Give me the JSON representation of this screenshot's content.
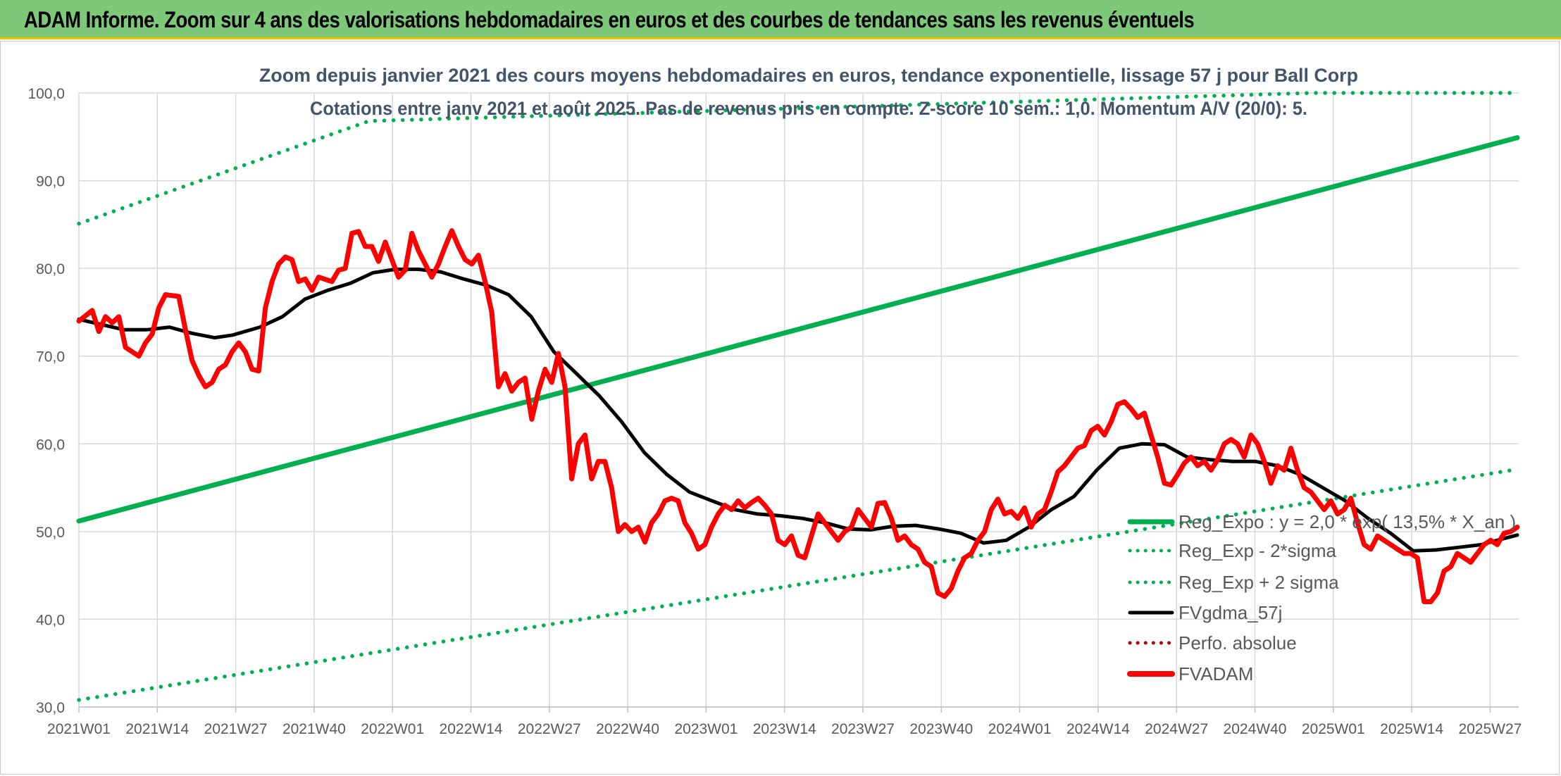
{
  "banner": {
    "title": "ADAM Informe. Zoom sur 4 ans des valorisations hebdomadaires en euros et des courbes de tendances sans les revenus éventuels"
  },
  "colors": {
    "banner": "#7ec87a",
    "banner_border": "#f2c100",
    "trend": "#00b050",
    "fvgdma": "#000000",
    "fvadam": "#ff0000",
    "perfo": "#c00000",
    "grid": "#d9d9d9",
    "title_text": "#44546a",
    "tick_text": "#595959"
  },
  "chart_data": {
    "type": "line",
    "title": "Zoom depuis janvier 2021 des cours moyens hebdomadaires en euros, tendance exponentielle, lissage 57 j pour Ball Corp",
    "subtitle": "Cotations entre janv 2021 et août 2025. Pas de revenus pris en compte. Z-score 10 sem.: 1,0. Momentum A/V (20/0): 5.",
    "ylim": [
      30,
      100
    ],
    "yticks": [
      30,
      40,
      50,
      60,
      70,
      80,
      90,
      100
    ],
    "ytick_labels": [
      "30,0",
      "40,0",
      "50,0",
      "60,0",
      "70,0",
      "80,0",
      "90,0",
      "100,0"
    ],
    "week_count": 239,
    "xtick_labels": [
      "2021W01",
      "2021W14",
      "2021W27",
      "2021W40",
      "2022W01",
      "2022W14",
      "2022W27",
      "2022W40",
      "2023W01",
      "2023W14",
      "2023W27",
      "2023W40",
      "2024W01",
      "2024W14",
      "2024W27",
      "2024W40",
      "2025W01",
      "2025W14",
      "2025W27"
    ],
    "grid": true,
    "legend_position": "bottom-right",
    "series": [
      {
        "name": "Reg_Expo : y = 2,0 * exp( 13,5% *  X_an )",
        "style": "solid",
        "color": "#00b050",
        "points": [
          [
            0,
            51.2
          ],
          [
            238,
            94.9
          ]
        ]
      },
      {
        "name": "Reg_Exp - 2*sigma",
        "style": "dotted",
        "color": "#00b050",
        "points": [
          [
            0,
            30.8
          ],
          [
            238,
            57.1
          ]
        ]
      },
      {
        "name": "Reg_Exp + 2 sigma",
        "style": "dotted",
        "color": "#00b050",
        "points": [
          [
            0,
            85.1
          ],
          [
            48,
            96.8
          ],
          [
            204,
            100
          ],
          [
            238,
            100
          ]
        ]
      },
      {
        "name": "FVgdma_57j",
        "style": "solid",
        "color": "#000000",
        "points": [
          [
            0,
            74.2
          ],
          [
            5,
            73.6
          ],
          [
            10,
            73.0
          ],
          [
            15,
            73.0
          ],
          [
            20,
            73.3
          ],
          [
            25,
            72.6
          ],
          [
            30,
            72.1
          ],
          [
            34,
            72.4
          ],
          [
            40,
            73.3
          ],
          [
            45,
            74.5
          ],
          [
            50,
            76.5
          ],
          [
            55,
            77.5
          ],
          [
            60,
            78.3
          ],
          [
            65,
            79.5
          ],
          [
            70,
            79.9
          ],
          [
            75,
            79.9
          ],
          [
            80,
            79.6
          ],
          [
            85,
            78.8
          ],
          [
            90,
            78.1
          ],
          [
            95,
            77.0
          ],
          [
            100,
            74.5
          ],
          [
            105,
            70.5
          ],
          [
            110,
            68.0
          ],
          [
            115,
            65.5
          ],
          [
            120,
            62.5
          ],
          [
            125,
            59.0
          ],
          [
            130,
            56.5
          ],
          [
            135,
            54.5
          ],
          [
            140,
            53.5
          ],
          [
            145,
            52.5
          ],
          [
            150,
            52.0
          ],
          [
            155,
            51.8
          ],
          [
            160,
            51.5
          ],
          [
            165,
            51.0
          ],
          [
            170,
            50.3
          ],
          [
            175,
            50.2
          ],
          [
            180,
            50.6
          ],
          [
            185,
            50.7
          ],
          [
            190,
            50.3
          ],
          [
            195,
            49.8
          ],
          [
            200,
            48.7
          ],
          [
            205,
            49.0
          ],
          [
            210,
            50.5
          ],
          [
            215,
            52.5
          ],
          [
            220,
            54.0
          ],
          [
            225,
            57.0
          ],
          [
            230,
            59.5
          ],
          [
            235,
            60.0
          ],
          [
            240,
            59.9
          ],
          [
            245,
            58.5
          ],
          [
            250,
            58.2
          ],
          [
            255,
            58.0
          ],
          [
            260,
            58.0
          ],
          [
            265,
            57.5
          ],
          [
            270,
            56.5
          ],
          [
            275,
            55.0
          ],
          [
            280,
            53.5
          ],
          [
            285,
            51.5
          ],
          [
            290,
            49.8
          ],
          [
            295,
            47.8
          ],
          [
            300,
            47.9
          ],
          [
            305,
            48.2
          ],
          [
            310,
            48.5
          ],
          [
            315,
            49.2
          ],
          [
            318,
            49.6
          ]
        ]
      },
      {
        "name": "Perfo. absolue",
        "style": "dotted",
        "color": "#c00000",
        "points": []
      },
      {
        "name": "FVADAM",
        "style": "solid",
        "color": "#ff0000",
        "points": [
          [
            0,
            74.0
          ],
          [
            4,
            75.2
          ],
          [
            6,
            72.8
          ],
          [
            8,
            74.5
          ],
          [
            10,
            73.8
          ],
          [
            12,
            74.5
          ],
          [
            14,
            71.0
          ],
          [
            16,
            70.5
          ],
          [
            18,
            70.0
          ],
          [
            20,
            71.5
          ],
          [
            22,
            72.5
          ],
          [
            24,
            75.5
          ],
          [
            26,
            77.0
          ],
          [
            30,
            76.8
          ],
          [
            32,
            73.0
          ],
          [
            34,
            69.5
          ],
          [
            36,
            67.8
          ],
          [
            38,
            66.5
          ],
          [
            40,
            67.0
          ],
          [
            42,
            68.5
          ],
          [
            44,
            69.0
          ],
          [
            46,
            70.5
          ],
          [
            48,
            71.5
          ],
          [
            50,
            70.5
          ],
          [
            52,
            68.5
          ],
          [
            54,
            68.3
          ],
          [
            56,
            75.5
          ],
          [
            58,
            78.5
          ],
          [
            60,
            80.5
          ],
          [
            62,
            81.3
          ],
          [
            64,
            81.0
          ],
          [
            66,
            78.5
          ],
          [
            68,
            78.8
          ],
          [
            70,
            77.5
          ],
          [
            72,
            79.0
          ],
          [
            76,
            78.5
          ],
          [
            78,
            79.8
          ],
          [
            80,
            80.0
          ],
          [
            82,
            84.0
          ],
          [
            84,
            84.2
          ],
          [
            86,
            82.5
          ],
          [
            88,
            82.5
          ],
          [
            90,
            80.8
          ],
          [
            92,
            83.0
          ],
          [
            94,
            81.0
          ],
          [
            96,
            79.0
          ],
          [
            98,
            79.8
          ],
          [
            100,
            84.0
          ],
          [
            102,
            82.0
          ],
          [
            104,
            80.5
          ],
          [
            106,
            79.0
          ],
          [
            108,
            80.5
          ],
          [
            110,
            82.5
          ],
          [
            112,
            84.3
          ],
          [
            114,
            82.5
          ],
          [
            116,
            81.0
          ],
          [
            118,
            80.5
          ],
          [
            120,
            81.5
          ],
          [
            122,
            78.5
          ],
          [
            124,
            75.0
          ],
          [
            126,
            66.5
          ],
          [
            128,
            68.0
          ],
          [
            130,
            66.0
          ],
          [
            132,
            67.0
          ],
          [
            134,
            67.5
          ],
          [
            136,
            62.8
          ],
          [
            138,
            66.0
          ],
          [
            140,
            68.5
          ],
          [
            142,
            67.0
          ],
          [
            144,
            70.3
          ],
          [
            146,
            66.5
          ],
          [
            148,
            56.0
          ],
          [
            150,
            60.0
          ],
          [
            152,
            61.0
          ],
          [
            154,
            56.0
          ],
          [
            156,
            58.0
          ],
          [
            158,
            58.0
          ],
          [
            160,
            55.0
          ],
          [
            162,
            50.0
          ],
          [
            164,
            50.8
          ],
          [
            166,
            50.0
          ],
          [
            168,
            50.5
          ],
          [
            170,
            48.8
          ],
          [
            172,
            51.0
          ],
          [
            174,
            52.0
          ],
          [
            176,
            53.5
          ],
          [
            178,
            53.8
          ],
          [
            180,
            53.5
          ],
          [
            182,
            51.0
          ],
          [
            184,
            49.8
          ],
          [
            186,
            48.0
          ],
          [
            188,
            48.5
          ],
          [
            190,
            50.5
          ],
          [
            192,
            52.0
          ],
          [
            194,
            53.0
          ],
          [
            196,
            52.5
          ],
          [
            198,
            53.5
          ],
          [
            200,
            52.7
          ],
          [
            202,
            53.3
          ],
          [
            204,
            53.8
          ],
          [
            206,
            53.0
          ],
          [
            208,
            52.0
          ],
          [
            210,
            49.0
          ],
          [
            212,
            48.5
          ],
          [
            214,
            49.5
          ],
          [
            216,
            47.3
          ],
          [
            218,
            47.0
          ],
          [
            220,
            49.5
          ],
          [
            222,
            52.0
          ],
          [
            224,
            51.0
          ],
          [
            226,
            50.0
          ],
          [
            228,
            49.0
          ],
          [
            230,
            50.0
          ],
          [
            232,
            50.5
          ],
          [
            234,
            52.5
          ],
          [
            236,
            51.5
          ],
          [
            238,
            50.5
          ],
          [
            240,
            53.2
          ],
          [
            242,
            53.3
          ],
          [
            244,
            51.5
          ],
          [
            246,
            49.0
          ],
          [
            248,
            49.5
          ],
          [
            250,
            48.5
          ],
          [
            252,
            48.0
          ],
          [
            254,
            46.5
          ],
          [
            256,
            46.0
          ],
          [
            258,
            43.0
          ],
          [
            260,
            42.6
          ],
          [
            262,
            43.5
          ],
          [
            264,
            45.5
          ],
          [
            266,
            47.0
          ],
          [
            268,
            47.5
          ],
          [
            270,
            49.0
          ],
          [
            272,
            50.0
          ],
          [
            274,
            52.5
          ],
          [
            276,
            53.7
          ],
          [
            278,
            52.0
          ],
          [
            280,
            52.3
          ],
          [
            282,
            51.5
          ],
          [
            284,
            52.7
          ],
          [
            286,
            50.5
          ],
          [
            288,
            52.0
          ],
          [
            290,
            52.5
          ],
          [
            292,
            54.5
          ],
          [
            294,
            56.8
          ],
          [
            296,
            57.5
          ],
          [
            298,
            58.5
          ],
          [
            300,
            59.5
          ],
          [
            302,
            59.8
          ],
          [
            304,
            61.5
          ],
          [
            306,
            62.0
          ],
          [
            308,
            61.0
          ],
          [
            310,
            62.5
          ],
          [
            312,
            64.5
          ],
          [
            314,
            64.8
          ],
          [
            316,
            64.0
          ],
          [
            318,
            63.0
          ],
          [
            320,
            63.5
          ],
          [
            322,
            61.0
          ],
          [
            324,
            58.5
          ],
          [
            326,
            55.5
          ],
          [
            328,
            55.3
          ],
          [
            330,
            56.5
          ],
          [
            332,
            57.8
          ],
          [
            334,
            58.5
          ],
          [
            336,
            57.5
          ],
          [
            338,
            58.0
          ],
          [
            340,
            57.0
          ],
          [
            342,
            58.2
          ],
          [
            344,
            60.0
          ],
          [
            346,
            60.5
          ],
          [
            348,
            60.0
          ],
          [
            350,
            58.5
          ],
          [
            352,
            61.0
          ],
          [
            354,
            60.0
          ],
          [
            356,
            58.0
          ],
          [
            358,
            55.5
          ],
          [
            360,
            57.5
          ],
          [
            362,
            57.0
          ],
          [
            364,
            59.5
          ],
          [
            366,
            57.0
          ],
          [
            368,
            55.0
          ],
          [
            370,
            54.5
          ],
          [
            372,
            53.5
          ],
          [
            374,
            52.5
          ],
          [
            376,
            53.5
          ],
          [
            378,
            52.0
          ],
          [
            380,
            52.5
          ],
          [
            382,
            53.8
          ],
          [
            384,
            51.0
          ],
          [
            386,
            48.5
          ],
          [
            388,
            48.0
          ],
          [
            390,
            49.5
          ],
          [
            392,
            49.0
          ],
          [
            394,
            48.5
          ],
          [
            396,
            48.0
          ],
          [
            398,
            47.5
          ],
          [
            400,
            47.5
          ],
          [
            402,
            47.0
          ],
          [
            404,
            42.0
          ],
          [
            406,
            42.0
          ],
          [
            408,
            43.0
          ],
          [
            410,
            45.5
          ],
          [
            412,
            46.0
          ],
          [
            414,
            47.5
          ],
          [
            416,
            47.0
          ],
          [
            418,
            46.5
          ],
          [
            420,
            47.5
          ],
          [
            422,
            48.5
          ],
          [
            424,
            49.0
          ],
          [
            426,
            48.5
          ],
          [
            428,
            49.8
          ],
          [
            430,
            50.0
          ],
          [
            432,
            50.5
          ]
        ]
      }
    ]
  }
}
